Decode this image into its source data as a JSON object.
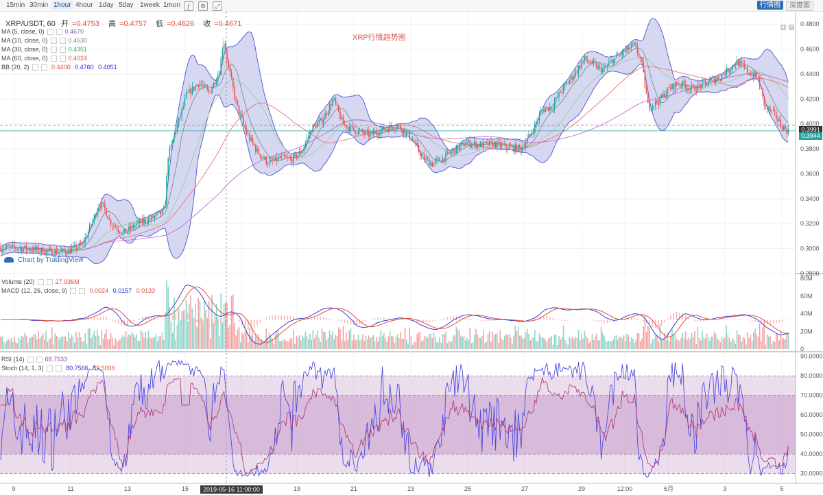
{
  "toolbar": {
    "timeframes": [
      "15min",
      "30min",
      "1hour",
      "4hour",
      "1day",
      "5day",
      "1week",
      "1mon"
    ],
    "active_timeframe": "1hour",
    "right_buttons": {
      "active": "行情图",
      "inactive": "深度图"
    }
  },
  "symbol": {
    "pair": "XRP/USDT, 60",
    "open_label": "开",
    "open": "=0.4753",
    "high_label": "高",
    "high": "=0.4757",
    "low_label": "低",
    "low": "=0.4626",
    "close_label": "收",
    "close": "=0.4671"
  },
  "chart_title": "XRP行情趋势图",
  "credit": "Chart by TradingView",
  "legends": {
    "main": [
      {
        "label": "MA (5, close, 0)",
        "value": "0.4670",
        "color": "#9b59b6"
      },
      {
        "label": "MA (10, close, 0)",
        "value": "0.4530",
        "color": "#7f8c8d"
      },
      {
        "label": "MA (30, close, 0)",
        "value": "0.4351",
        "color": "#27ae60"
      },
      {
        "label": "MA (60, close, 0)",
        "value": "0.4024",
        "color": "#e74c3c"
      }
    ],
    "bb": {
      "label": "BB (20, 2)",
      "values": [
        "0.4406",
        "0.4760",
        "0.4051"
      ],
      "colors": [
        "#e74c3c",
        "#2b2bd9",
        "#2b2bd9"
      ]
    },
    "volume": {
      "label": "Volume (20)",
      "value": "27.936M",
      "color": "#e74c3c"
    },
    "macd": {
      "label": "MACD (12, 26, close, 9)",
      "values": [
        "0.0024",
        "0.0157",
        "0.0133"
      ],
      "colors": [
        "#e74c3c",
        "#2b2bd9",
        "#e74c3c"
      ]
    },
    "rsi": {
      "label": "RSI (14)",
      "value": "68.7533",
      "color": "#8e44ad"
    },
    "stoch": {
      "label": "Stoch (14, 1, 3)",
      "values": [
        "80.7566",
        "89.5036"
      ],
      "colors": [
        "#2b2bd9",
        "#e74c3c"
      ]
    }
  },
  "price_tags": [
    {
      "value": "0.3991",
      "color": "#333333"
    },
    {
      "value": "0.3944",
      "color": "#26a69a"
    }
  ],
  "crosshair_date": "2019-05-16 11:00:00",
  "colors": {
    "up": "#26a69a",
    "down": "#ef5350",
    "bb_fill": "#c5c8ec",
    "bb_line": "#5b5fd1",
    "rsi_band": "#c99ecc"
  },
  "chart_data": [
    {
      "type": "candlestick",
      "title": "XRP行情趋势图",
      "ylim": [
        0.28,
        0.49
      ],
      "y_ticks": [
        "0.2800",
        "0.3000",
        "0.3200",
        "0.3400",
        "0.3600",
        "0.3800",
        "0.4000",
        "0.4200",
        "0.4400",
        "0.4600",
        "0.4800"
      ],
      "x_ticks": [
        "9",
        "11",
        "13",
        "15",
        "17",
        "19",
        "21",
        "23",
        "25",
        "27",
        "29",
        "12:00",
        "6月",
        "3",
        "5"
      ],
      "grid": true,
      "close_path": {
        "points": [
          [
            0,
            0.301
          ],
          [
            40,
            0.3
          ],
          [
            75,
            0.297
          ],
          [
            100,
            0.298
          ],
          [
            120,
            0.303
          ],
          [
            135,
            0.322
          ],
          [
            145,
            0.336
          ],
          [
            152,
            0.333
          ],
          [
            160,
            0.322
          ],
          [
            180,
            0.312
          ],
          [
            200,
            0.32
          ],
          [
            220,
            0.324
          ],
          [
            240,
            0.33
          ],
          [
            245,
            0.374
          ],
          [
            258,
            0.398
          ],
          [
            272,
            0.423
          ],
          [
            290,
            0.433
          ],
          [
            305,
            0.425
          ],
          [
            320,
            0.442
          ],
          [
            326,
            0.468
          ],
          [
            334,
            0.443
          ],
          [
            345,
            0.415
          ],
          [
            360,
            0.392
          ],
          [
            375,
            0.378
          ],
          [
            392,
            0.368
          ],
          [
            410,
            0.373
          ],
          [
            425,
            0.371
          ],
          [
            440,
            0.378
          ],
          [
            455,
            0.397
          ],
          [
            470,
            0.403
          ],
          [
            486,
            0.42
          ],
          [
            500,
            0.4
          ],
          [
            520,
            0.394
          ],
          [
            540,
            0.391
          ],
          [
            560,
            0.396
          ],
          [
            580,
            0.399
          ],
          [
            600,
            0.388
          ],
          [
            615,
            0.374
          ],
          [
            630,
            0.368
          ],
          [
            645,
            0.372
          ],
          [
            660,
            0.378
          ],
          [
            680,
            0.385
          ],
          [
            700,
            0.383
          ],
          [
            720,
            0.384
          ],
          [
            740,
            0.381
          ],
          [
            760,
            0.38
          ],
          [
            775,
            0.393
          ],
          [
            790,
            0.411
          ],
          [
            805,
            0.414
          ],
          [
            820,
            0.428
          ],
          [
            835,
            0.438
          ],
          [
            852,
            0.452
          ],
          [
            866,
            0.447
          ],
          [
            880,
            0.443
          ],
          [
            895,
            0.452
          ],
          [
            910,
            0.458
          ],
          [
            925,
            0.463
          ],
          [
            935,
            0.451
          ],
          [
            945,
            0.414
          ],
          [
            960,
            0.418
          ],
          [
            975,
            0.428
          ],
          [
            990,
            0.433
          ],
          [
            1010,
            0.428
          ],
          [
            1030,
            0.433
          ],
          [
            1050,
            0.438
          ],
          [
            1075,
            0.45
          ],
          [
            1090,
            0.442
          ],
          [
            1105,
            0.437
          ],
          [
            1115,
            0.414
          ],
          [
            1130,
            0.407
          ],
          [
            1140,
            0.398
          ],
          [
            1150,
            0.394
          ]
        ]
      },
      "last_values": {
        "close": 0.3944,
        "ref": 0.3991
      },
      "bollinger_half_width_hint": 0.014
    },
    {
      "type": "volume_macd",
      "y_ticks": [
        "0",
        "20M",
        "40M",
        "60M",
        "80M"
      ],
      "ylim": [
        0,
        80
      ]
    },
    {
      "type": "rsi_stoch",
      "y_ticks": [
        "30.0000",
        "40.0000",
        "50.0000",
        "60.0000",
        "70.0000",
        "80.0000",
        "90.0000"
      ],
      "ylim": [
        25,
        92
      ],
      "bands": [
        30,
        40,
        70,
        80
      ]
    }
  ]
}
